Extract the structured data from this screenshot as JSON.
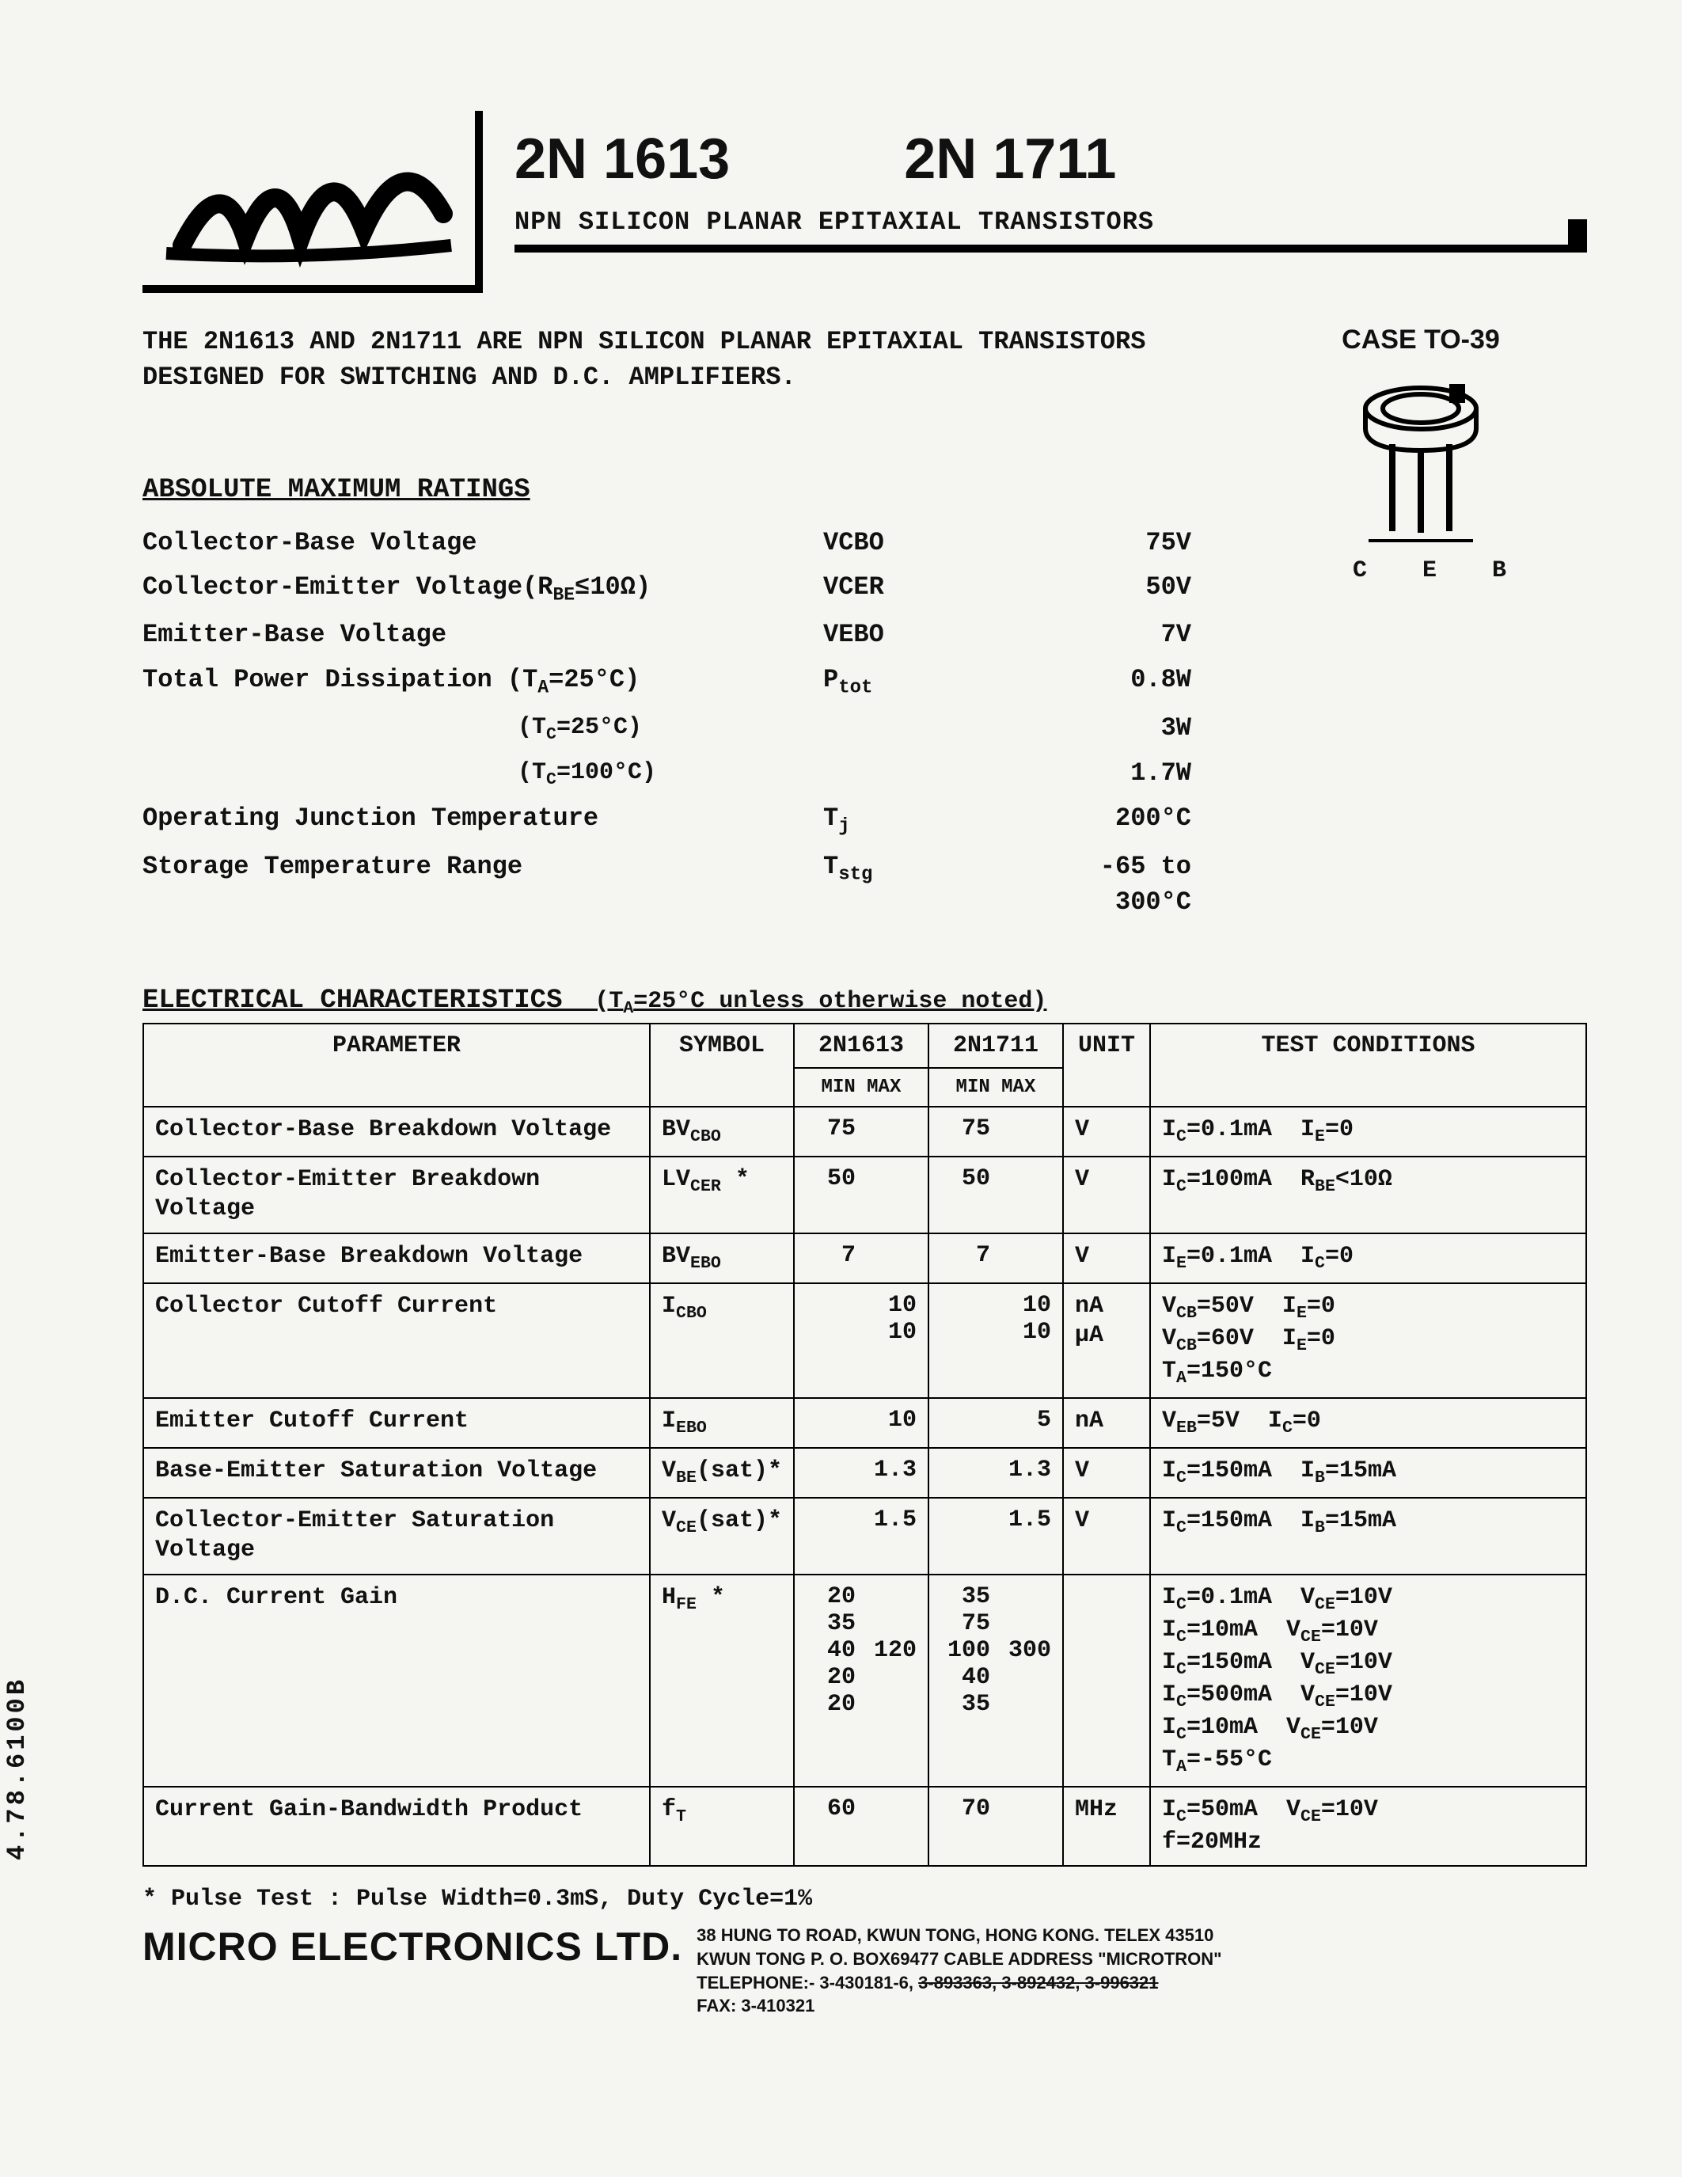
{
  "side_label": "4.78.6100B",
  "header": {
    "part1": "2N 1613",
    "part2": "2N 1711",
    "subtitle": "NPN SILICON PLANAR EPITAXIAL TRANSISTORS"
  },
  "intro": "THE 2N1613 AND 2N1711 ARE NPN SILICON PLANAR EPITAXIAL TRANSISTORS DESIGNED FOR SWITCHING AND D.C. AMPLIFIERS.",
  "case": {
    "title": "CASE TO-39",
    "pins": "C E B"
  },
  "ratings_title": "ABSOLUTE MAXIMUM RATINGS",
  "ratings": [
    {
      "name": "Collector-Base Voltage",
      "sym": "VCBO",
      "val": "75V"
    },
    {
      "name": "Collector-Emitter Voltage(R<sub>BE</sub>≤10Ω)",
      "sym": "VCER",
      "val": "50V"
    },
    {
      "name": "Emitter-Base Voltage",
      "sym": "VEBO",
      "val": "7V"
    },
    {
      "name": "Total Power Dissipation",
      "sym": "P<sub>tot</sub>",
      "conds": [
        "(T<sub>A</sub>=25°C)",
        "(T<sub>C</sub>=25°C)",
        "(T<sub>C</sub>=100°C)"
      ],
      "vals": [
        "0.8W",
        "3W",
        "1.7W"
      ]
    },
    {
      "name": "Operating Junction Temperature",
      "sym": "T<sub>j</sub>",
      "val": "200°C"
    },
    {
      "name": "Storage Temperature Range",
      "sym": "T<sub>stg</sub>",
      "val": "-65 to 300°C"
    }
  ],
  "char_title": "ELECTRICAL CHARACTERISTICS",
  "char_title_cond": "(T<sub>A</sub>=25°C unless otherwise noted)",
  "char_headers": {
    "param": "PARAMETER",
    "sym": "SYMBOL",
    "p1": "2N1613",
    "p2": "2N1711",
    "unit": "UNIT",
    "tc": "TEST CONDITIONS",
    "mm": "MIN MAX"
  },
  "char_rows": [
    {
      "param": "Collector-Base Breakdown Voltage",
      "sym": "BV<sub>CBO</sub>",
      "p1min": "75",
      "p1max": "",
      "p2min": "75",
      "p2max": "",
      "unit": "V",
      "tc": "I<sub>C</sub>=0.1mA&nbsp;&nbsp;I<sub>E</sub>=0"
    },
    {
      "param": "Collector-Emitter Breakdown Voltage",
      "sym": "LV<sub>CER</sub> *",
      "p1min": "50",
      "p1max": "",
      "p2min": "50",
      "p2max": "",
      "unit": "V",
      "tc": "I<sub>C</sub>=100mA&nbsp;&nbsp;R<sub>BE</sub>&lt;10Ω"
    },
    {
      "param": "Emitter-Base Breakdown Voltage",
      "sym": "BV<sub>EBO</sub>",
      "p1min": "7",
      "p1max": "",
      "p2min": "7",
      "p2max": "",
      "unit": "V",
      "tc": "I<sub>E</sub>=0.1mA&nbsp;&nbsp;I<sub>C</sub>=0"
    },
    {
      "param": "Collector Cutoff Current",
      "sym": "I<sub>CBO</sub>",
      "p1min": "",
      "p1max": "10<br>10",
      "p2min": "",
      "p2max": "10<br>10",
      "unit": "nA<br>µA",
      "tc": "V<sub>CB</sub>=50V&nbsp;&nbsp;I<sub>E</sub>=0<br>V<sub>CB</sub>=60V&nbsp;&nbsp;I<sub>E</sub>=0<br>T<sub>A</sub>=150°C"
    },
    {
      "param": "Emitter Cutoff Current",
      "sym": "I<sub>EBO</sub>",
      "p1min": "",
      "p1max": "10",
      "p2min": "",
      "p2max": "5",
      "unit": "nA",
      "tc": "V<sub>EB</sub>=5V&nbsp;&nbsp;I<sub>C</sub>=0"
    },
    {
      "param": "Base-Emitter Saturation Voltage",
      "sym": "V<sub>BE</sub>(sat)*",
      "p1min": "",
      "p1max": "1.3",
      "p2min": "",
      "p2max": "1.3",
      "unit": "V",
      "tc": "I<sub>C</sub>=150mA&nbsp;&nbsp;I<sub>B</sub>=15mA"
    },
    {
      "param": "Collector-Emitter Saturation Voltage",
      "sym": "V<sub>CE</sub>(sat)*",
      "p1min": "",
      "p1max": "1.5",
      "p2min": "",
      "p2max": "1.5",
      "unit": "V",
      "tc": "I<sub>C</sub>=150mA&nbsp;&nbsp;I<sub>B</sub>=15mA"
    },
    {
      "param": "D.C. Current Gain",
      "sym": "H<sub>FE</sub> *",
      "p1min": "20<br>35<br>40<br>20<br>20",
      "p1max": "<br><br>120<br><br>",
      "p2min": "35<br>75<br>100<br>40<br>35",
      "p2max": "<br><br>300<br><br>",
      "unit": "",
      "tc": "I<sub>C</sub>=0.1mA&nbsp;&nbsp;V<sub>CE</sub>=10V<br>I<sub>C</sub>=10mA&nbsp;&nbsp;V<sub>CE</sub>=10V<br>I<sub>C</sub>=150mA&nbsp;&nbsp;V<sub>CE</sub>=10V<br>I<sub>C</sub>=500mA&nbsp;&nbsp;V<sub>CE</sub>=10V<br>I<sub>C</sub>=10mA&nbsp;&nbsp;V<sub>CE</sub>=10V<br>T<sub>A</sub>=-55°C"
    },
    {
      "param": "Current Gain-Bandwidth Product",
      "sym": "f<sub>T</sub>",
      "p1min": "60",
      "p1max": "",
      "p2min": "70",
      "p2max": "",
      "unit": "MHz",
      "tc": "I<sub>C</sub>=50mA&nbsp;&nbsp;V<sub>CE</sub>=10V<br>f=20MHz"
    }
  ],
  "footnote": "* Pulse Test : Pulse Width=0.3mS, Duty Cycle=1%",
  "footer": {
    "company": "MICRO ELECTRONICS LTD.",
    "addr1": "38 HUNG TO ROAD, KWUN TONG, HONG KONG.   TELEX 43510",
    "addr2": "KWUN TONG P. O. BOX69477 CABLE ADDRESS \"MICROTRON\"",
    "addr3a": "TELEPHONE:- 3-430181-6, ",
    "addr3b": "3-893363, 3-892432, 3-996321",
    "fax": "FAX: 3-410321"
  }
}
